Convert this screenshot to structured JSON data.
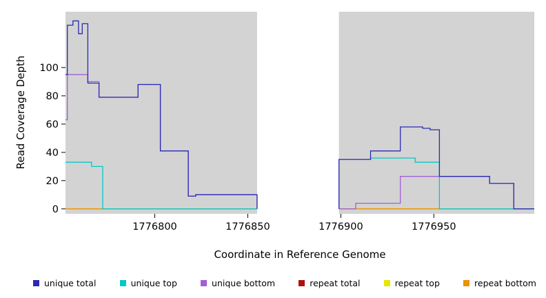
{
  "chart_data": {
    "type": "line",
    "subtype": "step-coverage",
    "title": "",
    "xlabel": "Coordinate in Reference Genome",
    "ylabel": "Read Coverage Depth",
    "xlim": [
      1776752,
      1777004
    ],
    "ylim": [
      -3.5,
      139.5
    ],
    "x_ticks": [
      1776800,
      1776850,
      1776900,
      1776950
    ],
    "x_tick_labels": [
      "1776800",
      "1776850",
      "1776900",
      "1776950"
    ],
    "y_ticks": [
      0,
      20,
      40,
      60,
      80,
      100
    ],
    "y_tick_labels": [
      "0",
      "20",
      "40",
      "60",
      "80",
      "100"
    ],
    "grid": false,
    "plot_bg": "#d3d3d3",
    "figure_bg": "#ffffff",
    "masked_region": {
      "from": 1776855,
      "to": 1776899,
      "color": "#ffffff"
    },
    "legend_position": "bottom",
    "series": [
      {
        "name": "repeat total",
        "color": "#b01010",
        "segments": [
          [
            [
              1776752,
              0
            ],
            [
              1776855,
              0
            ]
          ],
          [
            [
              1776899,
              0
            ],
            [
              1777004,
              0
            ]
          ]
        ]
      },
      {
        "name": "repeat top",
        "color": "#e6e600",
        "segments": [
          [
            [
              1776752,
              0
            ],
            [
              1776855,
              0
            ]
          ],
          [
            [
              1776899,
              0
            ],
            [
              1777004,
              0
            ]
          ]
        ]
      },
      {
        "name": "repeat bottom",
        "color": "#f09000",
        "segments": [
          [
            [
              1776752,
              0
            ],
            [
              1776772,
              0
            ]
          ],
          [
            [
              1776899,
              0
            ],
            [
              1776953,
              0
            ]
          ]
        ]
      },
      {
        "name": "unique bottom",
        "color": "#a060d8",
        "segments": [
          [
            [
              1776752,
              63
            ],
            [
              1776753,
              95
            ],
            [
              1776764,
              90
            ],
            [
              1776770,
              79
            ],
            [
              1776791,
              88
            ],
            [
              1776803,
              41
            ],
            [
              1776818,
              9
            ],
            [
              1776822,
              10
            ],
            [
              1776855,
              0
            ]
          ],
          [
            [
              1776899,
              0
            ],
            [
              1776908,
              4
            ],
            [
              1776932,
              23
            ],
            [
              1776980,
              18
            ],
            [
              1776993,
              0
            ],
            [
              1777004,
              0
            ]
          ]
        ]
      },
      {
        "name": "unique top",
        "color": "#00c8c8",
        "segments": [
          [
            [
              1776752,
              33
            ],
            [
              1776766,
              30
            ],
            [
              1776772,
              0
            ],
            [
              1776855,
              0
            ]
          ],
          [
            [
              1776899,
              0
            ],
            [
              1776899,
              35
            ],
            [
              1776916,
              36
            ],
            [
              1776940,
              33
            ],
            [
              1776953,
              0
            ],
            [
              1777004,
              0
            ]
          ]
        ]
      },
      {
        "name": "unique total",
        "color": "#2a2ab5",
        "segments": [
          [
            [
              1776752,
              95
            ],
            [
              1776753,
              130
            ],
            [
              1776756,
              133
            ],
            [
              1776759,
              124
            ],
            [
              1776761,
              131
            ],
            [
              1776764,
              89
            ],
            [
              1776770,
              79
            ],
            [
              1776791,
              88
            ],
            [
              1776803,
              41
            ],
            [
              1776818,
              9
            ],
            [
              1776822,
              10
            ],
            [
              1776855,
              0
            ]
          ],
          [
            [
              1776899,
              0
            ],
            [
              1776899,
              35
            ],
            [
              1776916,
              41
            ],
            [
              1776932,
              58
            ],
            [
              1776944,
              57
            ],
            [
              1776948,
              56
            ],
            [
              1776953,
              23
            ],
            [
              1776980,
              18
            ],
            [
              1776993,
              0
            ],
            [
              1777004,
              0
            ]
          ]
        ]
      }
    ],
    "legend": [
      {
        "label": "unique total",
        "color": "#2a2ab5"
      },
      {
        "label": "unique top",
        "color": "#00c8c8"
      },
      {
        "label": "unique bottom",
        "color": "#a060d8"
      },
      {
        "label": "repeat total",
        "color": "#b01010"
      },
      {
        "label": "repeat top",
        "color": "#e6e600"
      },
      {
        "label": "repeat bottom",
        "color": "#f09000"
      }
    ]
  }
}
